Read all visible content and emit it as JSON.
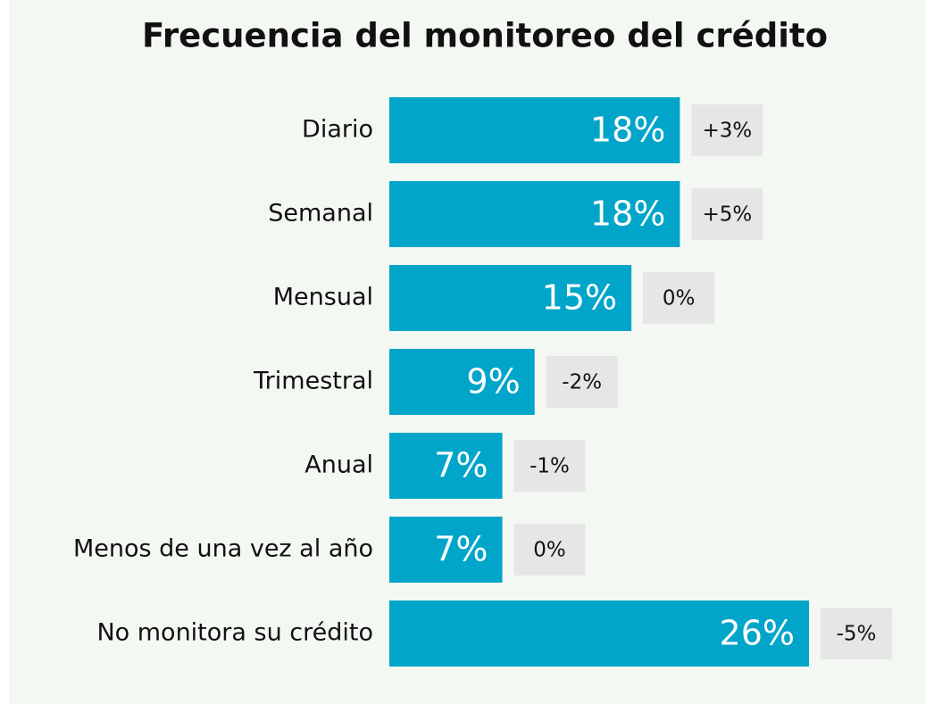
{
  "chart_data": {
    "type": "bar",
    "orientation": "horizontal",
    "title": "Frecuencia del monitoreo del crédito",
    "categories": [
      "Diario",
      "Semanal",
      "Mensual",
      "Trimestral",
      "Anual",
      "Menos de una vez al año",
      "No monitora su crédito"
    ],
    "values": [
      18,
      18,
      15,
      9,
      7,
      7,
      26
    ],
    "value_labels": [
      "18%",
      "18%",
      "15%",
      "9%",
      "7%",
      "7%",
      "26%"
    ],
    "changes": [
      "+3%",
      "+5%",
      "0%",
      "-2%",
      "-1%",
      "0%",
      "-5%"
    ],
    "color": "#00a5c9"
  }
}
